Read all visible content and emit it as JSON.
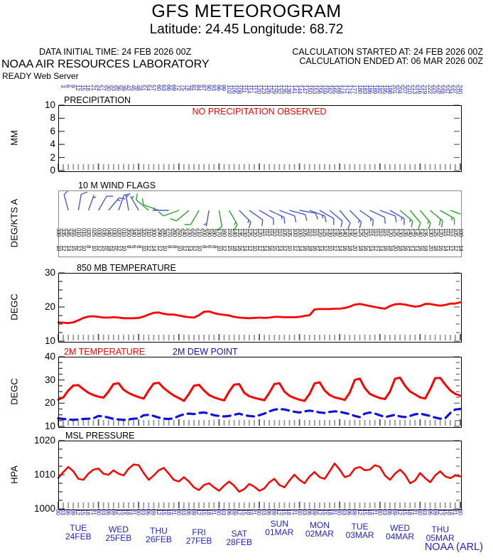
{
  "header": {
    "title": "GFS METEOROGRAM",
    "subtitle": "Latitude: 24.45 Longitude:  68.72",
    "data_initial": "DATA INITIAL TIME: 24 FEB 2026 00Z",
    "calc_started": "CALCULATION STARTED AT: 24 FEB 2026 00Z",
    "calc_ended": "CALCULATION ENDED AT: 06 MAR 2026 00Z",
    "org": "NOAA AIR RESOURCES LABORATORY",
    "server": "READY Web Server"
  },
  "footer": {
    "credit": "NOAA (ARL)"
  },
  "colors": {
    "line_red": "#ff0000",
    "label_blue": "#2222cc",
    "barb_blue": "#4a5ad0",
    "barb_green": "#2f9e2f",
    "dew_blue": "#1111dd",
    "tick_gray": "#999999",
    "tick_dark": "#555555"
  },
  "time_axis": {
    "steps": 81,
    "step_hours": 3,
    "start_time": "24 FEB 2026 00Z",
    "end_time": "06 MAR 2026 00Z",
    "valid_hour_cycle": [
      "00",
      "03",
      "06",
      "09",
      "12",
      "15",
      "18",
      "21"
    ],
    "date_labels": [
      {
        "day": "TUE",
        "date": "24FEB"
      },
      {
        "day": "WED",
        "date": "25FEB"
      },
      {
        "day": "THU",
        "date": "26FEB"
      },
      {
        "day": "FRI",
        "date": "27FEB"
      },
      {
        "day": "SAT",
        "date": "28FEB"
      },
      {
        "day": "SUN",
        "date": "01MAR"
      },
      {
        "day": "MON",
        "date": "02MAR"
      },
      {
        "day": "TUE",
        "date": "03MAR"
      },
      {
        "day": "WED",
        "date": "04MAR"
      },
      {
        "day": "THU",
        "date": "05MAR"
      }
    ]
  },
  "chart_data": [
    {
      "type": "line",
      "id": "precip",
      "title": "PRECIPITATION",
      "ylabel": "MM",
      "ylim": [
        0,
        10
      ],
      "yticks": [
        0,
        2,
        4,
        6,
        8,
        10
      ],
      "annotation": "NO PRECIPITATION OBSERVED",
      "x_hours": [
        0,
        240
      ],
      "values": [
        0,
        0,
        0,
        0,
        0,
        0,
        0,
        0,
        0,
        0,
        0,
        0,
        0,
        0,
        0,
        0,
        0,
        0,
        0,
        0,
        0,
        0,
        0,
        0,
        0,
        0,
        0,
        0,
        0,
        0,
        0,
        0,
        0,
        0,
        0,
        0,
        0,
        0,
        0,
        0,
        0,
        0,
        0,
        0,
        0,
        0,
        0,
        0,
        0,
        0,
        0,
        0,
        0,
        0,
        0,
        0,
        0,
        0,
        0,
        0,
        0,
        0,
        0,
        0,
        0,
        0,
        0,
        0,
        0,
        0,
        0,
        0,
        0,
        0,
        0,
        0,
        0,
        0,
        0,
        0,
        0
      ]
    },
    {
      "type": "wind-barbs",
      "id": "wind10m",
      "title": "10 M  WIND FLAGS",
      "ylabel": "DEG/KTS  A",
      "dir_deg": [
        330,
        335,
        345,
        355,
        10,
        15,
        20,
        25,
        30,
        35,
        40,
        30,
        20,
        10,
        350,
        340,
        330,
        320,
        310,
        300,
        290,
        280,
        270,
        260,
        250,
        240,
        230,
        220,
        210,
        200,
        190,
        180,
        170,
        160,
        150,
        140,
        135,
        130,
        125,
        120,
        120,
        115,
        115,
        110,
        110,
        105,
        105,
        100,
        100,
        105,
        110,
        115,
        120,
        125,
        130,
        135,
        140,
        140,
        135,
        130,
        125,
        120,
        115,
        110,
        110,
        115,
        120,
        125,
        130,
        135,
        140,
        145,
        140,
        135,
        130,
        125,
        120,
        115,
        110,
        105,
        100
      ],
      "speed_kts": [
        10,
        12,
        14,
        15,
        12,
        10,
        8,
        10,
        12,
        15,
        18,
        15,
        12,
        10,
        8,
        6,
        8,
        10,
        12,
        14,
        12,
        10,
        8,
        8,
        10,
        12,
        14,
        12,
        10,
        8,
        6,
        8,
        10,
        12,
        15,
        18,
        16,
        14,
        12,
        10,
        12,
        14,
        16,
        15,
        14,
        12,
        10,
        12,
        14,
        16,
        18,
        16,
        14,
        12,
        10,
        12,
        14,
        16,
        18,
        20,
        18,
        16,
        14,
        12,
        14,
        16,
        18,
        20,
        18,
        16,
        14,
        14,
        16,
        18,
        20,
        18,
        16,
        14,
        12,
        12,
        14
      ],
      "barb_colors": [
        "b",
        "b",
        "b",
        "b",
        "b",
        "b",
        "b",
        "b",
        "b",
        "g",
        "g",
        "b",
        "g",
        "g",
        "g",
        "b",
        "g",
        "g",
        "b",
        "b",
        "b",
        "b",
        "b",
        "b",
        "b",
        "b",
        "b",
        "b",
        "b",
        "b",
        "b",
        "b",
        "b",
        "b",
        "g",
        "g",
        "g",
        "g",
        "g",
        "g",
        "g"
      ]
    },
    {
      "type": "line",
      "id": "t850",
      "title": "850 MB  TEMPERATURE",
      "ylabel": "DEGC",
      "ylim": [
        10,
        30
      ],
      "yticks": [
        10,
        20,
        30
      ],
      "values": [
        15.5,
        15.4,
        15.3,
        15.5,
        16.1,
        16.8,
        17.2,
        17.3,
        17.1,
        16.9,
        16.9,
        17.0,
        16.9,
        16.7,
        16.7,
        16.7,
        16.8,
        17.2,
        17.8,
        18.3,
        18.4,
        18.0,
        17.8,
        17.8,
        17.5,
        17.2,
        17.0,
        16.9,
        17.6,
        18.6,
        18.7,
        18.2,
        17.9,
        17.7,
        17.5,
        17.1,
        16.9,
        16.8,
        16.7,
        16.8,
        16.9,
        16.8,
        16.9,
        17.1,
        17.1,
        17.0,
        17.0,
        17.0,
        17.1,
        17.4,
        17.6,
        19.3,
        19.4,
        19.4,
        19.4,
        19.5,
        19.5,
        19.7,
        20.1,
        20.7,
        20.9,
        20.6,
        20.3,
        20.0,
        19.7,
        19.5,
        20.3,
        20.8,
        20.9,
        20.7,
        20.4,
        20.1,
        20.3,
        20.9,
        20.9,
        20.6,
        20.4,
        20.6,
        21.0,
        21.0,
        21.4
      ]
    },
    {
      "type": "line",
      "id": "t2m",
      "title": "2M TEMPERATURE / 2M DEW POINT",
      "ylabel": "DEGC",
      "ylim": [
        10,
        40
      ],
      "yticks": [
        10,
        20,
        30,
        40
      ],
      "series": [
        {
          "name": "2M TEMPERATURE",
          "color": "#ff0000",
          "dashed": false,
          "values": [
            21.5,
            22.5,
            25.5,
            27.6,
            27.8,
            26.0,
            24.5,
            23.5,
            22.8,
            22.4,
            25.0,
            28.2,
            28.6,
            25.8,
            24.4,
            23.4,
            22.6,
            22.0,
            25.5,
            28.5,
            28.8,
            26.5,
            24.8,
            23.3,
            22.2,
            21.0,
            24.0,
            27.5,
            27.9,
            25.5,
            23.5,
            22.5,
            21.8,
            21.2,
            25.0,
            28.0,
            28.2,
            24.5,
            23.0,
            22.3,
            21.8,
            21.3,
            24.5,
            28.2,
            28.6,
            25.0,
            23.2,
            22.2,
            21.5,
            21.0,
            24.0,
            28.5,
            29.0,
            25.5,
            23.5,
            22.5,
            22.0,
            21.4,
            24.5,
            30.0,
            30.6,
            26.5,
            24.0,
            23.0,
            22.2,
            21.8,
            25.0,
            30.5,
            31.0,
            27.5,
            25.0,
            23.8,
            22.5,
            22.0,
            26.0,
            30.8,
            30.9,
            28.0,
            25.5,
            24.0,
            23.2
          ]
        },
        {
          "name": "2M  DEW POINT",
          "color": "#1111dd",
          "dashed": true,
          "values": [
            13.5,
            13.2,
            13.0,
            12.8,
            13.0,
            13.2,
            13.3,
            13.5,
            14.5,
            14.3,
            13.8,
            13.2,
            13.0,
            12.8,
            13.0,
            13.3,
            13.5,
            14.8,
            15.0,
            14.5,
            13.8,
            13.3,
            13.2,
            13.5,
            14.5,
            15.2,
            15.5,
            15.3,
            15.8,
            16.0,
            15.5,
            14.8,
            14.5,
            14.3,
            14.5,
            15.0,
            15.5,
            14.8,
            14.5,
            14.3,
            14.8,
            15.5,
            16.5,
            17.2,
            17.5,
            17.3,
            16.8,
            16.3,
            16.0,
            16.5,
            16.8,
            16.5,
            16.0,
            15.8,
            16.2,
            16.5,
            16.3,
            15.8,
            15.3,
            14.5,
            14.0,
            15.5,
            16.0,
            15.5,
            14.8,
            14.0,
            14.5,
            15.0,
            14.3,
            14.0,
            14.5,
            15.2,
            15.5,
            15.0,
            14.5,
            13.8,
            13.3,
            13.5,
            15.8,
            17.3,
            17.5
          ]
        }
      ]
    },
    {
      "type": "line",
      "id": "mslp",
      "title": "MSL PRESSURE",
      "ylabel": "HPA",
      "ylim": [
        1000,
        1020
      ],
      "yticks": [
        1000,
        1010,
        1020
      ],
      "values": [
        1009.0,
        1010.8,
        1012.3,
        1011.0,
        1008.8,
        1008.5,
        1010.3,
        1011.5,
        1011.8,
        1010.3,
        1010.0,
        1011.3,
        1010.3,
        1009.8,
        1011.8,
        1013.0,
        1012.8,
        1010.5,
        1008.5,
        1009.8,
        1011.3,
        1012.0,
        1010.3,
        1008.5,
        1008.0,
        1009.3,
        1008.0,
        1006.3,
        1005.5,
        1007.0,
        1007.5,
        1006.3,
        1005.3,
        1006.8,
        1008.0,
        1006.8,
        1005.0,
        1005.8,
        1007.3,
        1006.5,
        1005.3,
        1006.0,
        1007.8,
        1008.8,
        1007.0,
        1006.3,
        1008.3,
        1010.0,
        1008.5,
        1007.5,
        1009.5,
        1010.8,
        1009.3,
        1008.8,
        1011.0,
        1013.3,
        1011.5,
        1009.3,
        1009.8,
        1011.8,
        1012.3,
        1011.3,
        1011.5,
        1012.8,
        1012.3,
        1009.8,
        1008.5,
        1010.3,
        1011.5,
        1010.0,
        1007.5,
        1008.3,
        1010.5,
        1009.0,
        1007.8,
        1009.8,
        1011.0,
        1009.5,
        1009.0,
        1009.8,
        1009.5
      ]
    }
  ]
}
